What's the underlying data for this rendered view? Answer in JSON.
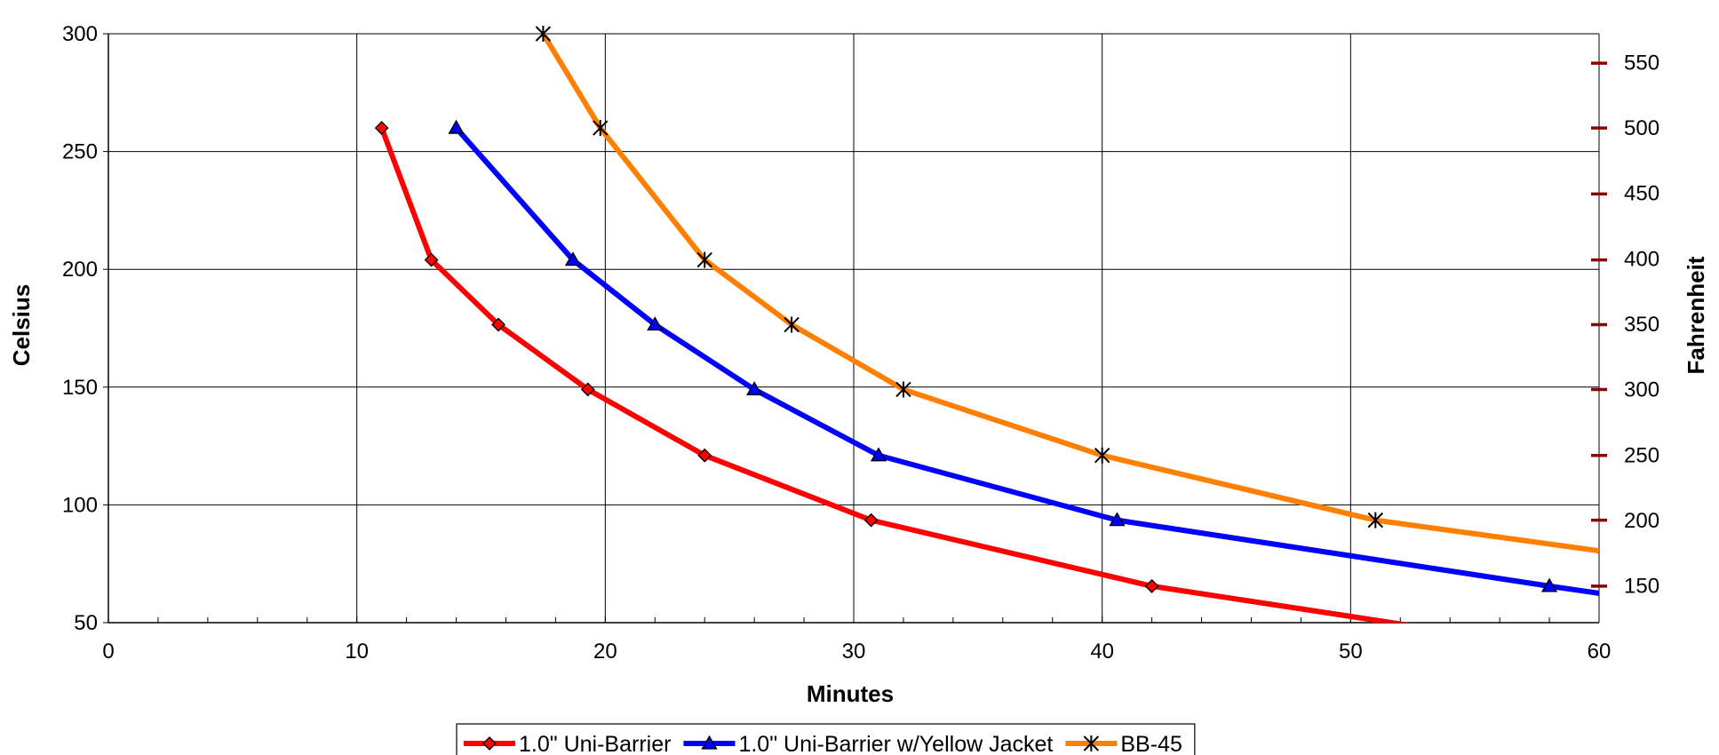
{
  "chart_data": {
    "type": "line",
    "title": "",
    "xlabel": "Minutes",
    "ylabel": "Celsius",
    "y2label": "Fahrenheit",
    "xlim": [
      0,
      60
    ],
    "ylim": [
      50,
      300
    ],
    "y2lim": [
      122,
      572
    ],
    "x_ticks": [
      0,
      10,
      20,
      30,
      40,
      50,
      60
    ],
    "y_ticks": [
      50,
      100,
      150,
      200,
      250,
      300
    ],
    "y2_ticks": [
      150,
      200,
      250,
      300,
      350,
      400,
      450,
      500,
      550
    ],
    "grid": true,
    "legend_position": "bottom",
    "series": [
      {
        "name": "1.0\" Uni-Barrier",
        "color": "#ff0000",
        "marker": "diamond",
        "marker_color": "#ff0000",
        "x": [
          11,
          13,
          15.7,
          19.3,
          24,
          30.7,
          42,
          56
        ],
        "y": [
          260,
          204,
          176.5,
          149,
          121,
          93.5,
          65.5,
          43
        ]
      },
      {
        "name": "1.0\" Uni-Barrier w/Yellow Jacket",
        "color": "#0000ff",
        "marker": "triangle",
        "marker_color": "#0000ff",
        "x": [
          14,
          18.7,
          22,
          26,
          31,
          40.6,
          58,
          60
        ],
        "y": [
          260,
          204,
          176.5,
          149,
          121,
          93.5,
          65.5,
          62.5
        ]
      },
      {
        "name": "BB-45",
        "color": "#ff7f00",
        "marker": "asterisk",
        "marker_color": "#000000",
        "x": [
          17.5,
          19.8,
          24,
          27.5,
          32,
          40,
          51,
          60
        ],
        "y": [
          300,
          260,
          204,
          176.5,
          149,
          121,
          93.5,
          80.5
        ]
      }
    ],
    "right_axis_marks_color": "#8b0000",
    "right_axis_marks_y": [
      65.5,
      93.5,
      121,
      149,
      176.5,
      204,
      232,
      260,
      287.5
    ]
  }
}
